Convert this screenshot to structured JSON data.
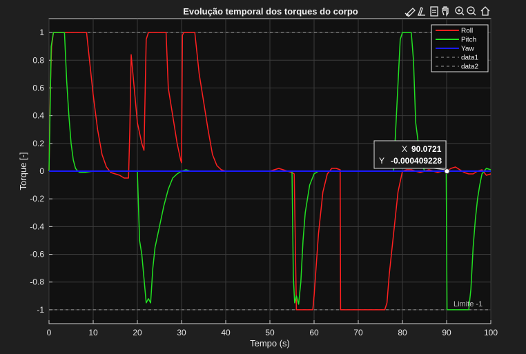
{
  "toolbar": {
    "icons": [
      "brush-icon",
      "data-tips-icon",
      "save-icon",
      "pan-icon",
      "zoom-in-icon",
      "zoom-out-icon",
      "home-icon"
    ]
  },
  "limit_label": "Limite -1",
  "datatip": {
    "x_label": "X",
    "x_value": "90.0721",
    "y_label": "Y",
    "y_value": "-0.000409228"
  },
  "chart_data": {
    "type": "line",
    "title": "Evolução temporal dos torques do corpo",
    "xlabel": "Tempo (s)",
    "ylabel": "Torque [-]",
    "xlim": [
      0,
      100
    ],
    "ylim": [
      -1.1,
      1.1
    ],
    "xticks": [
      "0",
      "10",
      "20",
      "30",
      "40",
      "50",
      "60",
      "70",
      "80",
      "90",
      "100"
    ],
    "yticks": [
      "-1",
      "-0.8",
      "-0.6",
      "-0.4",
      "-0.2",
      "0",
      "0.2",
      "0.4",
      "0.6",
      "0.8",
      "1"
    ],
    "grid": true,
    "legend_position": "top-right",
    "series": [
      {
        "name": "Roll",
        "color": "#ff2020",
        "x": [
          0,
          0.3,
          0.6,
          1,
          2,
          3,
          4,
          5,
          6,
          7,
          8,
          8.5,
          9,
          10,
          11,
          12,
          13,
          14,
          15,
          16,
          17,
          18,
          18.3,
          18.6,
          19,
          20,
          21,
          21.5,
          22,
          22.5,
          23,
          24,
          25,
          26,
          26.5,
          27,
          28,
          29,
          29.8,
          30,
          30.2,
          30.5,
          31,
          32,
          33,
          34,
          35,
          36,
          37,
          38,
          39,
          40,
          45,
          50,
          51,
          52,
          53,
          54,
          55,
          55.5,
          56,
          57,
          58,
          59,
          59.7,
          60,
          61,
          62,
          63,
          64,
          65,
          65.9,
          66,
          70,
          75,
          76,
          76.5,
          77,
          78,
          79,
          80,
          81,
          82,
          83,
          84,
          85,
          86,
          87,
          88,
          89,
          90,
          91,
          92,
          93,
          94,
          95,
          96,
          97,
          98,
          99,
          100
        ],
        "y": [
          0,
          0.6,
          0.9,
          1,
          1,
          1,
          1,
          1,
          1,
          1,
          1,
          1,
          0.85,
          0.55,
          0.3,
          0.12,
          0.03,
          -0.01,
          -0.02,
          -0.03,
          -0.05,
          -0.05,
          0.3,
          0.84,
          0.7,
          0.35,
          0.2,
          0.15,
          0.95,
          1,
          1,
          1,
          1,
          1,
          1,
          0.6,
          0.4,
          0.2,
          0.08,
          0.06,
          0.98,
          1,
          1,
          1,
          1,
          0.7,
          0.5,
          0.3,
          0.12,
          0.04,
          0.01,
          0,
          0,
          0,
          0.01,
          0.02,
          0.01,
          0,
          -0.01,
          -0.02,
          -1,
          -1,
          -1,
          -1,
          -1,
          -0.9,
          -0.45,
          -0.15,
          -0.02,
          0.02,
          0.02,
          0.01,
          -1,
          -1,
          -1,
          -1,
          -0.95,
          -0.75,
          -0.45,
          -0.15,
          0,
          0.01,
          0.01,
          0,
          -0.01,
          0,
          0.01,
          0,
          -0.01,
          0,
          0,
          0.02,
          0.03,
          0.01,
          -0.01,
          -0.02,
          -0.02,
          0,
          0.01,
          -0.03,
          -0.02
        ],
        "width": 1.5
      },
      {
        "name": "Pitch",
        "color": "#22e022",
        "x": [
          0,
          0.5,
          1,
          2,
          3,
          3.5,
          4,
          4.5,
          5,
          5.5,
          6,
          6.5,
          7,
          8,
          10,
          15,
          20,
          20.5,
          21,
          22,
          22.5,
          23,
          23.5,
          24,
          25,
          26,
          27,
          28,
          29,
          30,
          31,
          32,
          35,
          40,
          45,
          50,
          55,
          55.3,
          55.6,
          56,
          56.5,
          57,
          57.5,
          58,
          59,
          60,
          61,
          62,
          65,
          70,
          75,
          78,
          79.5,
          80,
          81,
          82,
          82.5,
          83,
          84,
          84.8,
          85,
          85.5,
          86,
          87,
          88,
          89,
          89.9,
          90.1,
          90.5,
          91,
          92,
          93,
          94,
          95,
          95.5,
          96,
          96.5,
          97,
          97.5,
          98,
          99,
          100
        ],
        "y": [
          0,
          0.9,
          1,
          1,
          1,
          1,
          0.65,
          0.4,
          0.2,
          0.08,
          0.02,
          0,
          -0.01,
          -0.01,
          0,
          0,
          0,
          -0.5,
          -0.6,
          -0.95,
          -0.92,
          -0.95,
          -0.7,
          -0.55,
          -0.4,
          -0.25,
          -0.13,
          -0.05,
          -0.02,
          0,
          0.01,
          0,
          0,
          0,
          0,
          0,
          0,
          -0.75,
          -0.95,
          -0.9,
          -0.96,
          -0.8,
          -0.5,
          -0.3,
          -0.1,
          -0.02,
          0,
          0,
          0,
          0,
          0,
          0,
          0.95,
          1,
          1,
          1,
          0.8,
          0.35,
          0.1,
          0.02,
          0,
          0,
          0,
          0,
          0,
          0,
          0,
          -1,
          -1,
          -1,
          -1,
          -1,
          -1,
          -1,
          -0.85,
          -0.55,
          -0.35,
          -0.2,
          -0.1,
          -0.02,
          0.02,
          0.01
        ],
        "width": 1.5
      },
      {
        "name": "Yaw",
        "color": "#1a1aff",
        "x": [
          0,
          100
        ],
        "y": [
          0,
          0
        ],
        "width": 2
      },
      {
        "name": "data1",
        "color": "#9a9a9a",
        "dash": "4,4",
        "x": [
          0,
          100
        ],
        "y": [
          1,
          1
        ],
        "width": 1
      },
      {
        "name": "data2",
        "color": "#9a9a9a",
        "dash": "4,4",
        "x": [
          0,
          100
        ],
        "y": [
          -1,
          -1
        ],
        "width": 1
      }
    ],
    "datatip_point": {
      "x": 90.0721,
      "y": -0.000409228
    }
  }
}
